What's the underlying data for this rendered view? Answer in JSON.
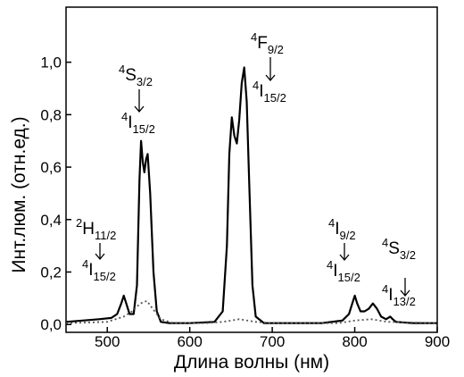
{
  "chart_data": {
    "type": "line",
    "xlabel": "Длина волны (нм)",
    "ylabel": "Инт.люм. (отн.ед.)",
    "xlim": [
      450,
      900
    ],
    "xticks": [
      500,
      600,
      700,
      800,
      900
    ],
    "ylim": [
      -0.03,
      1.21
    ],
    "yticks": [
      {
        "value": 0,
        "label": "0,0"
      },
      {
        "value": 0.2,
        "label": "0,2"
      },
      {
        "value": 0.4,
        "label": "0,4"
      },
      {
        "value": 0.6,
        "label": "0,6"
      },
      {
        "value": 0.8,
        "label": "0,8"
      },
      {
        "value": 1.0,
        "label": "1,0"
      }
    ],
    "series": [
      {
        "color": "#000000",
        "style": "solid",
        "x": [
          450,
          470,
          490,
          505,
          512,
          517,
          520,
          523,
          527,
          532,
          536,
          539,
          541,
          543,
          545,
          547,
          549,
          552,
          556,
          560,
          565,
          575,
          600,
          630,
          640,
          645,
          648,
          651,
          654,
          657,
          660,
          663,
          666,
          669,
          672,
          676,
          680,
          690,
          720,
          760,
          785,
          793,
          797,
          800,
          803,
          807,
          812,
          817,
          822,
          827,
          832,
          838,
          843,
          846,
          850,
          870,
          900
        ],
        "values": [
          0.01,
          0.015,
          0.02,
          0.025,
          0.04,
          0.08,
          0.11,
          0.08,
          0.04,
          0.04,
          0.15,
          0.55,
          0.7,
          0.62,
          0.58,
          0.63,
          0.65,
          0.5,
          0.2,
          0.05,
          0.01,
          0.005,
          0.005,
          0.01,
          0.05,
          0.3,
          0.65,
          0.79,
          0.72,
          0.69,
          0.78,
          0.92,
          0.98,
          0.85,
          0.55,
          0.15,
          0.03,
          0.005,
          0.005,
          0.005,
          0.015,
          0.04,
          0.08,
          0.11,
          0.08,
          0.05,
          0.05,
          0.06,
          0.08,
          0.06,
          0.03,
          0.02,
          0.03,
          0.02,
          0.01,
          0.005,
          0.005
        ]
      },
      {
        "color": "#555555",
        "style": "dotted",
        "x": [
          450,
          500,
          520,
          530,
          540,
          548,
          555,
          565,
          580,
          620,
          640,
          660,
          680,
          700,
          780,
          800,
          820,
          840,
          900
        ],
        "values": [
          0.005,
          0.01,
          0.03,
          0.05,
          0.08,
          0.09,
          0.06,
          0.02,
          0.005,
          0.005,
          0.01,
          0.02,
          0.01,
          0.005,
          0.005,
          0.015,
          0.02,
          0.01,
          0.005
        ]
      }
    ],
    "annotations": [
      {
        "upper": {
          "sup": "2",
          "term": "H",
          "sub": "11/2"
        },
        "lower": {
          "sup": "4",
          "term": "I",
          "sub": "15/2"
        }
      },
      {
        "upper": {
          "sup": "4",
          "term": "S",
          "sub": "3/2"
        },
        "lower": {
          "sup": "4",
          "term": "I",
          "sub": "15/2"
        }
      },
      {
        "upper": {
          "sup": "4",
          "term": "F",
          "sub": "9/2"
        },
        "lower": {
          "sup": "4",
          "term": "I",
          "sub": "15/2"
        }
      },
      {
        "upper": {
          "sup": "4",
          "term": "I",
          "sub": "9/2"
        },
        "lower": {
          "sup": "4",
          "term": "I",
          "sub": "15/2"
        }
      },
      {
        "upper": {
          "sup": "4",
          "term": "S",
          "sub": "3/2"
        },
        "lower": {
          "sup": "4",
          "term": "I",
          "sub": "13/2"
        }
      }
    ]
  }
}
